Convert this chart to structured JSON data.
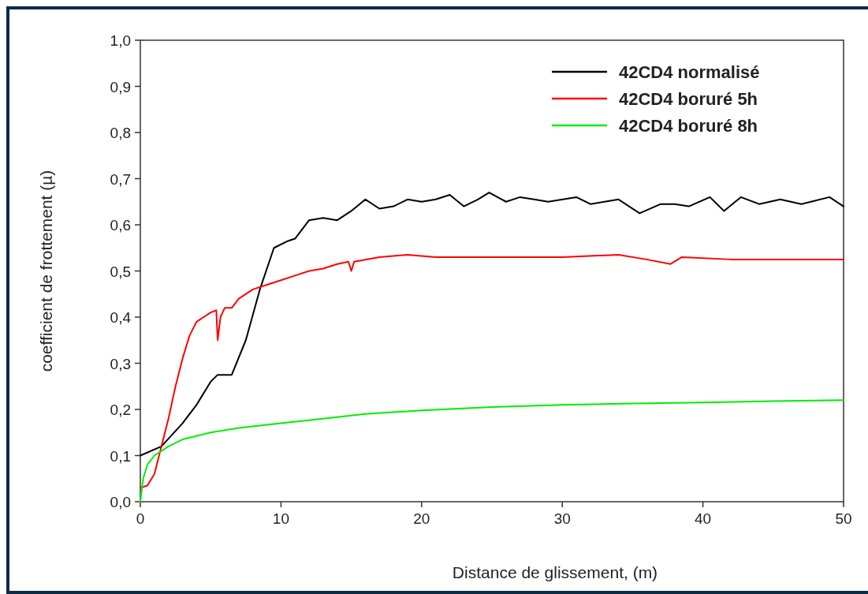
{
  "chart_data": {
    "type": "line",
    "xlabel": "Distance de glissement, (m)",
    "ylabel": "coefficient de frottement (µ)",
    "xlim": [
      0,
      50
    ],
    "xticks": [
      0,
      10,
      20,
      30,
      40,
      50
    ],
    "ylim": [
      0,
      1
    ],
    "yticks": [
      {
        "value": 0,
        "label": "0,0"
      },
      {
        "value": 0.1,
        "label": "0,1"
      },
      {
        "value": 0.2,
        "label": "0,2"
      },
      {
        "value": 0.3,
        "label": "0,3"
      },
      {
        "value": 0.4,
        "label": "0,4"
      },
      {
        "value": 0.5,
        "label": "0,5"
      },
      {
        "value": 0.6,
        "label": "0,6"
      },
      {
        "value": 0.7,
        "label": "0,7"
      },
      {
        "value": 0.8,
        "label": "0,8"
      },
      {
        "value": 0.9,
        "label": "0,9"
      },
      {
        "value": 1,
        "label": "1,0"
      }
    ],
    "grid": false,
    "legend": "top right",
    "marker": "none",
    "line_style": "solid",
    "series": [
      {
        "name": "42CD4 normalisé",
        "color": "#000000",
        "x": [
          0,
          1.5,
          3,
          4,
          5,
          5.5,
          6.5,
          7.5,
          8.5,
          9.5,
          10.5,
          11,
          12,
          13,
          14,
          15,
          16,
          17,
          18,
          19,
          20,
          21,
          22,
          23,
          24,
          24.8,
          26,
          27,
          28,
          29,
          31,
          32,
          33,
          34,
          35.5,
          37,
          38,
          39,
          40.5,
          41.5,
          42.7,
          44,
          45.5,
          47,
          49,
          50
        ],
        "values": [
          0.1,
          0.12,
          0.17,
          0.21,
          0.26,
          0.275,
          0.275,
          0.35,
          0.46,
          0.55,
          0.565,
          0.57,
          0.61,
          0.615,
          0.61,
          0.63,
          0.655,
          0.635,
          0.64,
          0.655,
          0.65,
          0.655,
          0.665,
          0.64,
          0.655,
          0.67,
          0.65,
          0.66,
          0.655,
          0.65,
          0.66,
          0.645,
          0.65,
          0.655,
          0.625,
          0.645,
          0.645,
          0.64,
          0.66,
          0.63,
          0.66,
          0.645,
          0.655,
          0.645,
          0.66,
          0.64
        ]
      },
      {
        "name": "42CD4 boruré 5h",
        "color": "#ff0000",
        "x": [
          0,
          0.5,
          1,
          1.5,
          2,
          2.5,
          3,
          3.5,
          4,
          4.5,
          5,
          5.4,
          5.5,
          5.7,
          6,
          6.5,
          7,
          8,
          9,
          10,
          11,
          12,
          13,
          14,
          14.8,
          15,
          15.2,
          17,
          19,
          21,
          25,
          30,
          34,
          36,
          37.7,
          38.5,
          42,
          46,
          50
        ],
        "values": [
          0.03,
          0.035,
          0.06,
          0.12,
          0.18,
          0.25,
          0.31,
          0.36,
          0.39,
          0.4,
          0.41,
          0.415,
          0.35,
          0.4,
          0.42,
          0.42,
          0.44,
          0.46,
          0.47,
          0.48,
          0.49,
          0.5,
          0.505,
          0.515,
          0.52,
          0.5,
          0.52,
          0.53,
          0.535,
          0.53,
          0.53,
          0.53,
          0.535,
          0.525,
          0.515,
          0.53,
          0.525,
          0.525,
          0.525
        ]
      },
      {
        "name": "42CD4 boruré 8h",
        "color": "#00ee00",
        "x": [
          0,
          0.2,
          0.5,
          1,
          2,
          3,
          5,
          7,
          10,
          13,
          16,
          20,
          25,
          30,
          35,
          40,
          45,
          50
        ],
        "values": [
          0,
          0.05,
          0.08,
          0.1,
          0.12,
          0.135,
          0.15,
          0.16,
          0.17,
          0.18,
          0.19,
          0.198,
          0.205,
          0.21,
          0.213,
          0.215,
          0.218,
          0.22
        ]
      }
    ]
  }
}
